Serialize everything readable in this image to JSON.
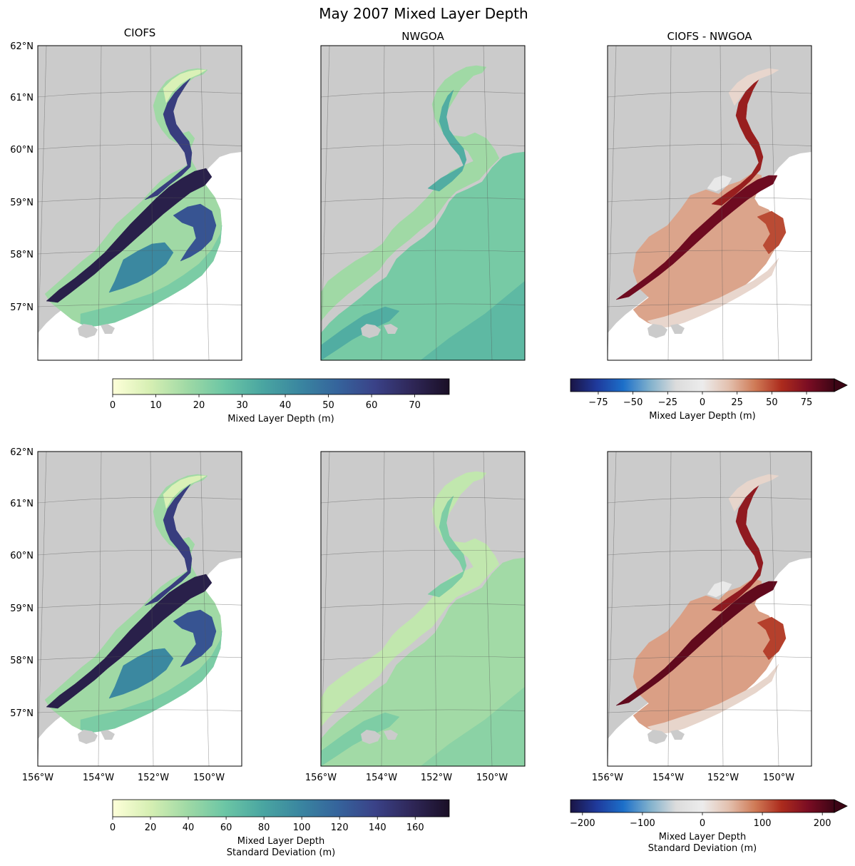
{
  "figure": {
    "title": "May 2007 Mixed Layer Depth"
  },
  "colors": {
    "land": "#cbcbcb",
    "ocean": "#ffffff",
    "graticule": "#555555",
    "frame": "#000000"
  },
  "colormaps": {
    "sequential": [
      "#feffd9",
      "#d6efb3",
      "#9fd9a5",
      "#6cc6a5",
      "#4aa6a1",
      "#3a86a0",
      "#35649c",
      "#3a4288",
      "#2f2758",
      "#1a0f26"
    ],
    "diverging": [
      "#1a1445",
      "#1f3a9c",
      "#1c6fc9",
      "#7fb0cc",
      "#dcdcdc",
      "#ececec",
      "#e3c0ae",
      "#cf7a56",
      "#ac2b1d",
      "#7b0d23",
      "#3c0515"
    ]
  },
  "chart_data": [
    {
      "type": "heatmap",
      "id": "ciofs-mean",
      "title": "CIOFS",
      "colormap": "sequential",
      "vmin": 0,
      "vmax": 78,
      "xlim": [
        -156,
        -149
      ],
      "ylim": [
        56,
        62
      ],
      "lat_ticks": [
        "62°N",
        "61°N",
        "60°N",
        "59°N",
        "58°N",
        "57°N"
      ],
      "lon_ticks": []
    },
    {
      "type": "heatmap",
      "id": "nwgoa-mean",
      "title": "NWGOA",
      "colormap": "sequential",
      "vmin": 0,
      "vmax": 78,
      "xlim": [
        -156,
        -149
      ],
      "ylim": [
        56,
        62
      ],
      "lat_ticks": [],
      "lon_ticks": []
    },
    {
      "type": "heatmap",
      "id": "diff-mean",
      "title": "CIOFS - NWGOA",
      "colormap": "diverging",
      "vmin": -95,
      "vmax": 95,
      "xlim": [
        -156,
        -149
      ],
      "ylim": [
        56,
        62
      ],
      "lat_ticks": [],
      "lon_ticks": []
    },
    {
      "type": "heatmap",
      "id": "ciofs-std",
      "title": "",
      "colormap": "sequential",
      "vmin": 0,
      "vmax": 178,
      "xlim": [
        -156,
        -149
      ],
      "ylim": [
        56,
        62
      ],
      "lat_ticks": [
        "62°N",
        "61°N",
        "60°N",
        "59°N",
        "58°N",
        "57°N"
      ],
      "lon_ticks": [
        "156°W",
        "154°W",
        "152°W",
        "150°W"
      ]
    },
    {
      "type": "heatmap",
      "id": "nwgoa-std",
      "title": "",
      "colormap": "sequential",
      "vmin": 0,
      "vmax": 178,
      "xlim": [
        -156,
        -149
      ],
      "ylim": [
        56,
        62
      ],
      "lat_ticks": [],
      "lon_ticks": [
        "156°W",
        "154°W",
        "152°W",
        "150°W"
      ]
    },
    {
      "type": "heatmap",
      "id": "diff-std",
      "title": "",
      "colormap": "diverging",
      "vmin": -220,
      "vmax": 220,
      "xlim": [
        -156,
        -149
      ],
      "ylim": [
        56,
        62
      ],
      "lat_ticks": [],
      "lon_ticks": [
        "156°W",
        "154°W",
        "152°W",
        "150°W"
      ]
    }
  ],
  "colorbars": [
    {
      "id": "cb-mean-seq",
      "colormap": "sequential",
      "vmin": 0,
      "vmax": 78,
      "ticks": [
        0,
        10,
        20,
        30,
        40,
        50,
        60,
        70
      ],
      "tick_labels": [
        "0",
        "10",
        "20",
        "30",
        "40",
        "50",
        "60",
        "70"
      ],
      "label_lines": [
        "Mixed Layer Depth (m)"
      ],
      "extend": "neither"
    },
    {
      "id": "cb-mean-div",
      "colormap": "diverging",
      "vmin": -95,
      "vmax": 95,
      "ticks": [
        -75,
        -50,
        -25,
        0,
        25,
        50,
        75
      ],
      "tick_labels": [
        "−75",
        "−50",
        "−25",
        "0",
        "25",
        "50",
        "75"
      ],
      "label_lines": [
        "Mixed Layer Depth (m)"
      ],
      "extend": "max"
    },
    {
      "id": "cb-std-seq",
      "colormap": "sequential",
      "vmin": 0,
      "vmax": 178,
      "ticks": [
        0,
        20,
        40,
        60,
        80,
        100,
        120,
        140,
        160
      ],
      "tick_labels": [
        "0",
        "20",
        "40",
        "60",
        "80",
        "100",
        "120",
        "140",
        "160"
      ],
      "label_lines": [
        "Mixed Layer Depth",
        "Standard Deviation (m)"
      ],
      "extend": "neither"
    },
    {
      "id": "cb-std-div",
      "colormap": "diverging",
      "vmin": -220,
      "vmax": 220,
      "ticks": [
        -200,
        -100,
        0,
        100,
        200
      ],
      "tick_labels": [
        "−200",
        "−100",
        "0",
        "100",
        "200"
      ],
      "label_lines": [
        "Mixed Layer Depth",
        "Standard Deviation (m)"
      ],
      "extend": "max"
    }
  ]
}
